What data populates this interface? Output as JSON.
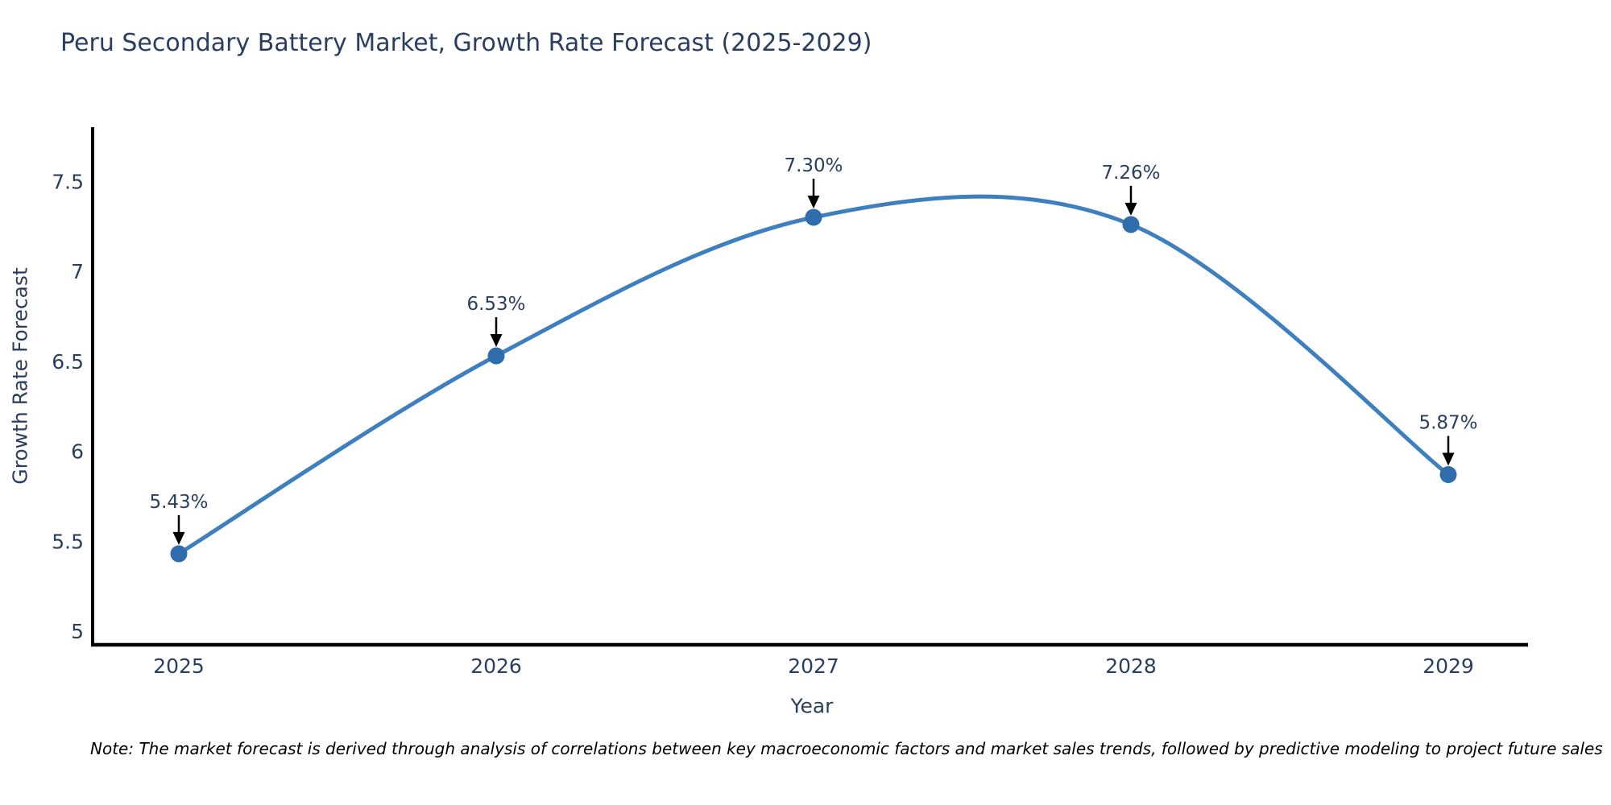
{
  "chart_data": {
    "type": "line",
    "line_shape": "spline",
    "title": "Peru Secondary Battery Market, Growth Rate Forecast (2025-2029)",
    "xlabel": "Year",
    "ylabel": "Growth Rate Forecast",
    "categories": [
      "2025",
      "2026",
      "2027",
      "2028",
      "2029"
    ],
    "values": [
      5.43,
      6.53,
      7.3,
      7.26,
      5.87
    ],
    "point_labels": [
      "5.43%",
      "6.53%",
      "7.30%",
      "7.26%",
      "5.87%"
    ],
    "yticks": [
      5,
      5.5,
      6,
      6.5,
      7,
      7.5
    ],
    "ytick_labels": [
      "5",
      "5.5",
      "6",
      "6.5",
      "7",
      "7.5"
    ],
    "ylim": [
      4.92,
      7.8
    ],
    "grid": false,
    "legend": "none",
    "colors": {
      "line": "#3d7fbf",
      "marker": "#2f6dad",
      "axis_line": "#000000",
      "tick_text": "#2a3f5f",
      "annotation_text": "#2a3f5f",
      "annotation_arrow": "#000000",
      "background": "#ffffff"
    }
  },
  "note": "Note: The market forecast is derived through analysis of correlations between key macroeconomic factors and market sales trends, followed by predictive modeling to project future sales"
}
